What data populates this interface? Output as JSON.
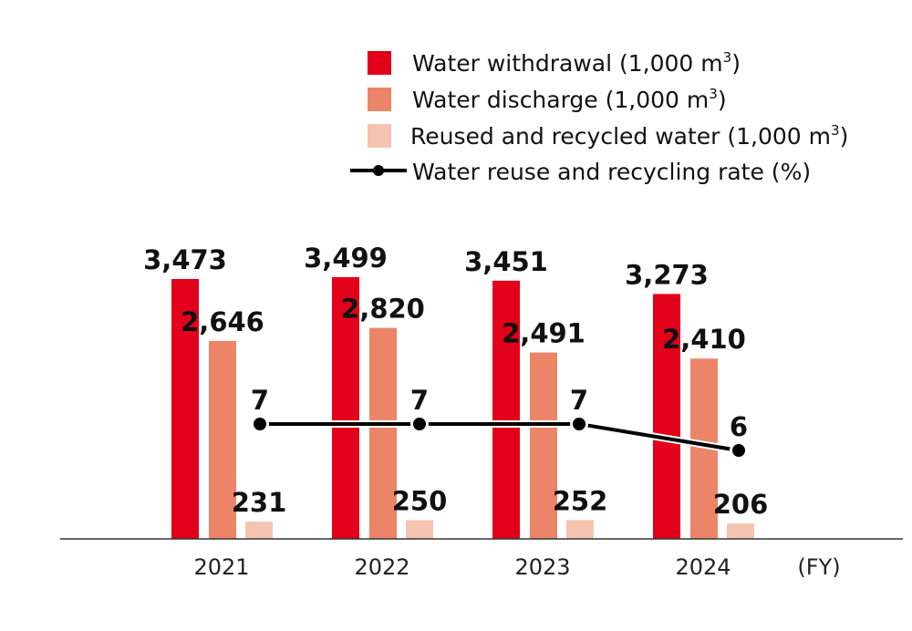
{
  "chart_data": {
    "type": "bar",
    "categories": [
      "2021",
      "2022",
      "2023",
      "2024"
    ],
    "x_unit_label": "(FY)",
    "series": [
      {
        "name": "Water withdrawal (1,000 m3)",
        "legend_main": "Water withdrawal (1,000 m",
        "legend_sup": "3",
        "legend_end": ")",
        "color": "#e2001a",
        "values": [
          3473,
          3499,
          3451,
          3273
        ],
        "labels": [
          "3,473",
          "3,499",
          "3,451",
          "3,273"
        ]
      },
      {
        "name": "Water discharge (1,000 m3)",
        "legend_main": "Water discharge (1,000 m",
        "legend_sup": "3",
        "legend_end": ")",
        "color": "#ec8468",
        "values": [
          2646,
          2820,
          2491,
          2410
        ],
        "labels": [
          "2,646",
          "2,820",
          "2,491",
          "2,410"
        ]
      },
      {
        "name": "Reused and recycled water (1,000 m3)",
        "legend_main": "Reused and recycled water (1,000 m",
        "legend_sup": "3",
        "legend_end": ")",
        "color": "#f5c4b0",
        "values": [
          231,
          250,
          252,
          206
        ],
        "labels": [
          "231",
          "250",
          "252",
          "206"
        ]
      }
    ],
    "line_series": {
      "name": "Water reuse and recycling rate (%)",
      "type": "line",
      "color": "#000000",
      "values": [
        7,
        7,
        7,
        6
      ],
      "labels": [
        "7",
        "7",
        "7",
        "6"
      ]
    },
    "legend_position": "top-right",
    "grid": false
  }
}
